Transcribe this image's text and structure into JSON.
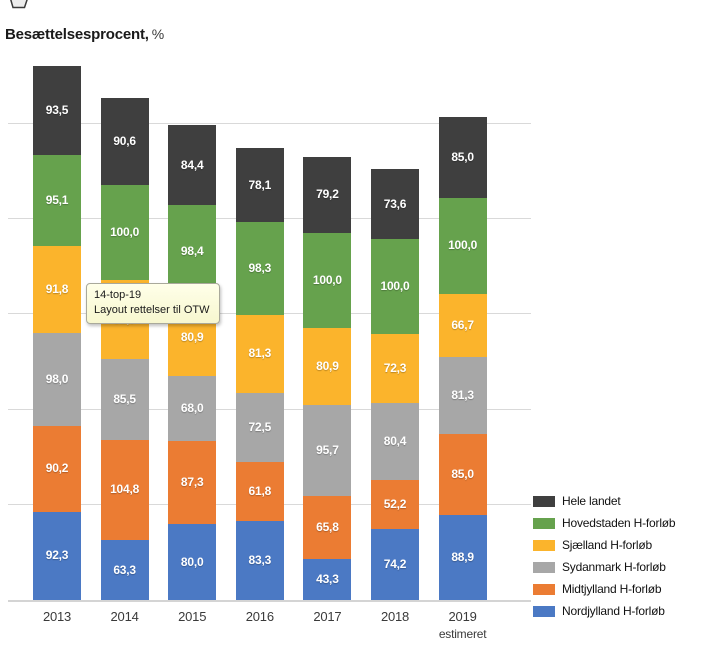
{
  "title": {
    "text": "Besættelsesprocent,",
    "unit": "%"
  },
  "annotation_tooltip": {
    "line1": "14-top-19",
    "line2": "Layout rettelser til OTW"
  },
  "chart_data": {
    "type": "bar",
    "stacked": true,
    "title": "Besættelsesprocent, %",
    "xlabel": "",
    "ylabel": "",
    "y_tick_labels_visible": false,
    "y_gridline_values": [
      100,
      200,
      300,
      400,
      500
    ],
    "ylim": [
      0,
      570
    ],
    "grid": true,
    "legend_position": "bottom-right",
    "value_label_decimal_separator": ",",
    "categories": [
      "2013",
      "2014",
      "2015",
      "2016",
      "2017",
      "2018",
      "2019"
    ],
    "category_sublabels": [
      "",
      "",
      "",
      "",
      "",
      "",
      "estimeret"
    ],
    "series": [
      {
        "name": "Nordjylland H-forløb",
        "color": "#4B79C4",
        "values": [
          92.3,
          63.3,
          80.0,
          83.3,
          43.3,
          74.2,
          88.9
        ]
      },
      {
        "name": "Midtjylland H-forløb",
        "color": "#EB7C33",
        "values": [
          90.2,
          104.8,
          87.3,
          61.8,
          65.8,
          52.2,
          85.0
        ]
      },
      {
        "name": "Sydanmark H-forløb",
        "color": "#A7A7A7",
        "values": [
          98.0,
          85.5,
          68.0,
          72.5,
          95.7,
          80.4,
          81.3
        ]
      },
      {
        "name": "Sjælland H-forløb",
        "color": "#FBB42C",
        "values": [
          91.8,
          82.7,
          80.9,
          81.3,
          80.9,
          72.3,
          66.7
        ]
      },
      {
        "name": "Hovedstaden H-forløb",
        "color": "#66A24D",
        "values": [
          95.1,
          100.0,
          98.4,
          98.3,
          100.0,
          100.0,
          100.0
        ]
      },
      {
        "name": "Hele landet",
        "color": "#3F3F3F",
        "values": [
          93.5,
          90.6,
          84.4,
          78.1,
          79.2,
          73.6,
          85.0
        ]
      }
    ],
    "legend": [
      {
        "label": "Hele landet",
        "color": "#3F3F3F"
      },
      {
        "label": "Hovedstaden H-forløb",
        "color": "#66A24D"
      },
      {
        "label": "Sjælland H-forløb",
        "color": "#FBB42C"
      },
      {
        "label": "Sydanmark H-forløb",
        "color": "#A7A7A7"
      },
      {
        "label": "Midtjylland H-forløb",
        "color": "#EB7C33"
      },
      {
        "label": "Nordjylland H-forløb",
        "color": "#4B79C4"
      }
    ]
  }
}
